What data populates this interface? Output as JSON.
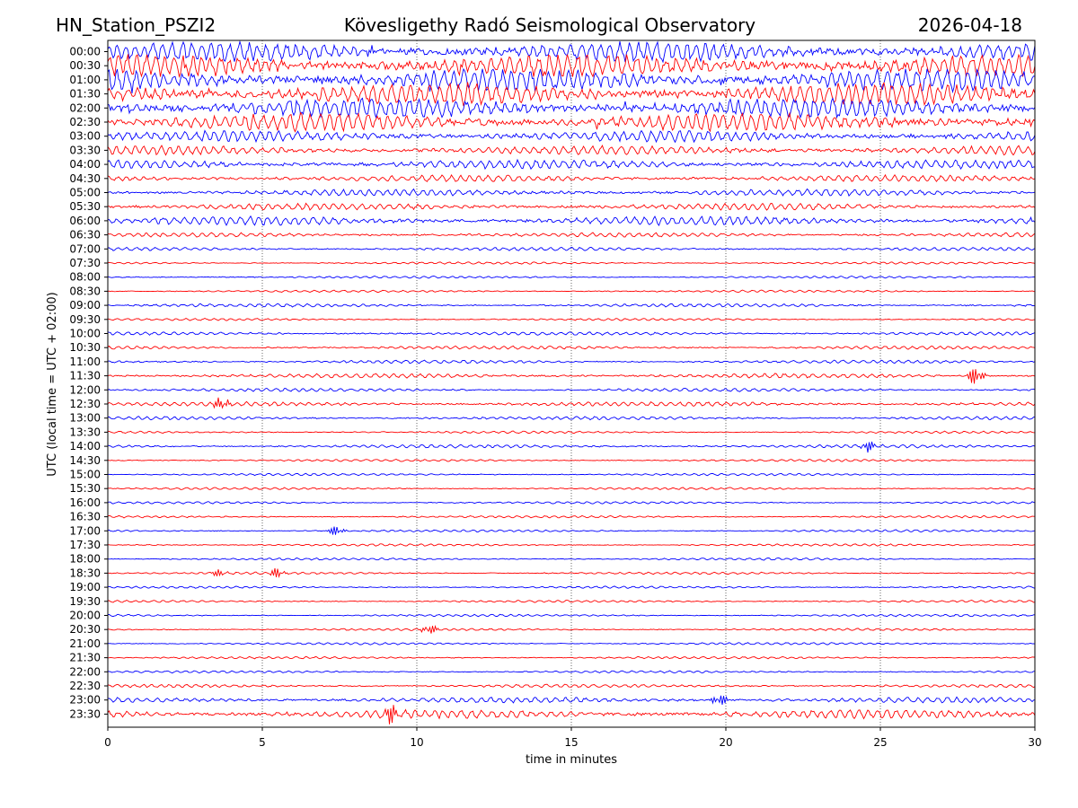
{
  "header": {
    "station": "HN_Station_PSZI2",
    "observatory": "Kövesligethy Radó Seismological Observatory",
    "date": "2026-04-18"
  },
  "chart_data": {
    "type": "line",
    "title": "Kövesligethy Radó Seismological Observatory",
    "xlabel": "time in minutes",
    "ylabel": "UTC (local time = UTC + 02:00)",
    "xlim": [
      0,
      30
    ],
    "xticks": [
      "0",
      "5",
      "10",
      "15",
      "20",
      "25",
      "30"
    ],
    "xtick_values": [
      0,
      5,
      10,
      15,
      20,
      25,
      30
    ],
    "grid": "vertical dotted at each x tick",
    "trace_colors": [
      "#0000ff",
      "#ff0000"
    ],
    "row_labels": [
      "00:00",
      "00:30",
      "01:00",
      "01:30",
      "02:00",
      "02:30",
      "03:00",
      "03:30",
      "04:00",
      "04:30",
      "05:00",
      "05:30",
      "06:00",
      "06:30",
      "07:00",
      "07:30",
      "08:00",
      "08:30",
      "09:00",
      "09:30",
      "10:00",
      "10:30",
      "11:00",
      "11:30",
      "12:00",
      "12:30",
      "13:00",
      "13:30",
      "14:00",
      "14:30",
      "15:00",
      "15:30",
      "16:00",
      "16:30",
      "17:00",
      "17:30",
      "18:00",
      "18:30",
      "19:00",
      "19:30",
      "20:00",
      "20:30",
      "21:00",
      "21:30",
      "22:00",
      "22:30",
      "23:00",
      "23:30"
    ],
    "noise_level": [
      9,
      10,
      10,
      10,
      9,
      8,
      5,
      4,
      4,
      3,
      3,
      3,
      4,
      2,
      1.5,
      1,
      1,
      1,
      1.5,
      1,
      1.5,
      1.5,
      1.5,
      2,
      1.5,
      2,
      1.5,
      1,
      1.5,
      1,
      1,
      1,
      1,
      1,
      1,
      1,
      1,
      1,
      1,
      1,
      1,
      1,
      1,
      1,
      1,
      1.5,
      2.5,
      4
    ],
    "events": [
      {
        "row": 23,
        "minute": 28.1,
        "amplitude": 6
      },
      {
        "row": 25,
        "minute": 3.7,
        "amplitude": 4
      },
      {
        "row": 28,
        "minute": 24.6,
        "amplitude": 3
      },
      {
        "row": 34,
        "minute": 7.4,
        "amplitude": 3
      },
      {
        "row": 37,
        "minute": 3.6,
        "amplitude": 2
      },
      {
        "row": 37,
        "minute": 5.5,
        "amplitude": 3
      },
      {
        "row": 41,
        "minute": 10.4,
        "amplitude": 3
      },
      {
        "row": 46,
        "minute": 19.8,
        "amplitude": 4
      },
      {
        "row": 47,
        "minute": 9.2,
        "amplitude": 5
      }
    ]
  }
}
